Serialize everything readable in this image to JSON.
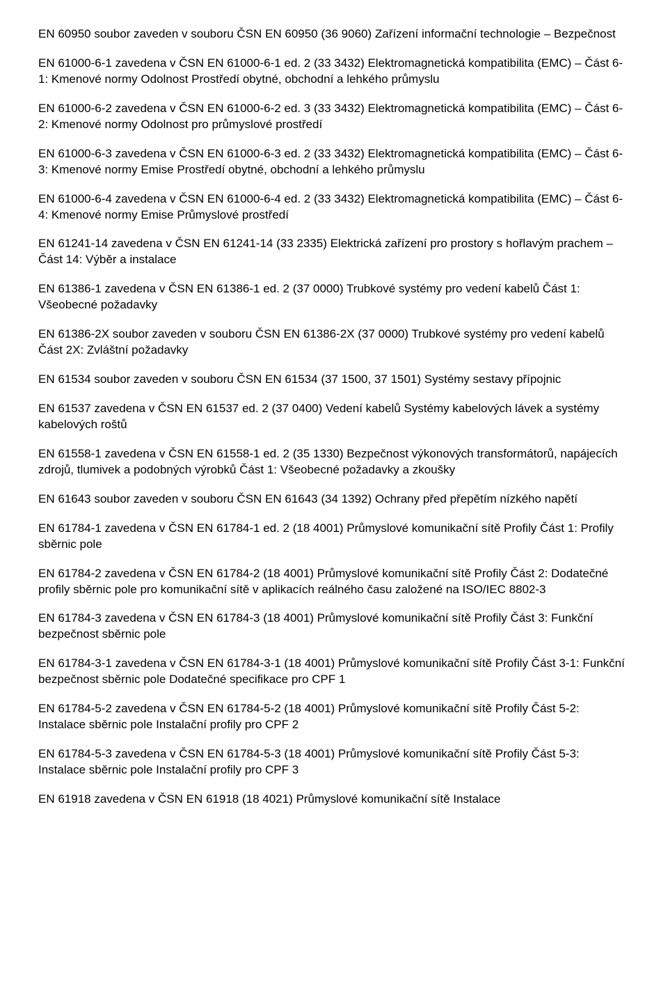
{
  "paragraphs": [
    "EN 60950 soubor zaveden v souboru ČSN EN 60950 (36 9060) Zařízení informační technologie – Bezpečnost",
    "EN 61000-6-1 zavedena v ČSN EN 61000-6-1 ed. 2 (33 3432) Elektromagnetická kompatibilita (EMC) – Část 6-1: Kmenové normy Odolnost Prostředí obytné, obchodní a lehkého průmyslu",
    "EN 61000-6-2 zavedena v ČSN EN 61000-6-2 ed. 3 (33 3432) Elektromagnetická kompatibilita (EMC) – Část 6-2: Kmenové normy Odolnost pro průmyslové prostředí",
    "EN 61000-6-3 zavedena v ČSN EN 61000-6-3 ed. 2 (33 3432) Elektromagnetická kompatibilita (EMC) – Část 6-3: Kmenové normy Emise Prostředí obytné, obchodní a lehkého průmyslu",
    "EN 61000-6-4 zavedena v ČSN EN 61000-6-4 ed. 2 (33 3432) Elektromagnetická kompatibilita (EMC) – Část 6-4: Kmenové normy Emise Průmyslové prostředí",
    "EN 61241-14 zavedena v ČSN EN 61241-14 (33 2335) Elektrická zařízení pro prostory s hořlavým prachem – Část 14: Výběr a instalace",
    "EN 61386-1 zavedena v ČSN EN 61386-1 ed. 2 (37 0000) Trubkové systémy pro vedení kabelů Část 1: Všeobecné požadavky",
    "EN 61386-2X soubor zaveden v souboru ČSN EN 61386-2X (37 0000) Trubkové systémy pro vedení kabelů Část 2X: Zvláštní požadavky",
    "EN 61534 soubor zaveden v souboru ČSN EN 61534 (37 1500, 37 1501) Systémy sestavy přípojnic",
    "EN 61537 zavedena v ČSN EN 61537 ed. 2 (37 0400) Vedení kabelů Systémy kabelových lávek a systémy kabelových roštů",
    "EN 61558-1 zavedena v ČSN EN 61558-1 ed. 2 (35 1330) Bezpečnost výkonových transformátorů, napájecích zdrojů, tlumivek a podobných výrobků Část 1: Všeobecné požadavky a zkoušky",
    "EN 61643 soubor zaveden v souboru ČSN EN 61643 (34 1392) Ochrany před přepětím nízkého napětí",
    "EN 61784-1 zavedena v ČSN EN 61784-1 ed. 2 (18 4001) Průmyslové komunikační sítě Profily Část 1: Profily sběrnic pole",
    "EN 61784-2 zavedena v ČSN EN 61784-2 (18 4001) Průmyslové komunikační sítě Profily Část 2: Dodatečné profily sběrnic pole pro komunikační sítě v aplikacích reálného času založené na ISO/IEC 8802-3",
    "EN 61784-3 zavedena v ČSN EN 61784-3 (18 4001) Průmyslové komunikační sítě Profily Část 3: Funkční bezpečnost sběrnic pole",
    "EN 61784-3-1 zavedena v ČSN EN 61784-3-1 (18 4001) Průmyslové komunikační sítě Profily Část 3-1: Funkční bezpečnost sběrnic pole Dodatečné specifikace pro CPF 1",
    "EN 61784-5-2 zavedena v ČSN EN 61784-5-2 (18 4001) Průmyslové komunikační sítě Profily Část 5-2: Instalace sběrnic pole Instalační profily pro CPF 2",
    "EN 61784-5-3 zavedena v ČSN EN 61784-5-3 (18 4001) Průmyslové komunikační sítě Profily Část 5-3: Instalace sběrnic pole Instalační profily pro CPF 3",
    "EN 61918 zavedena v ČSN EN 61918 (18 4021) Průmyslové komunikační sítě Instalace"
  ]
}
